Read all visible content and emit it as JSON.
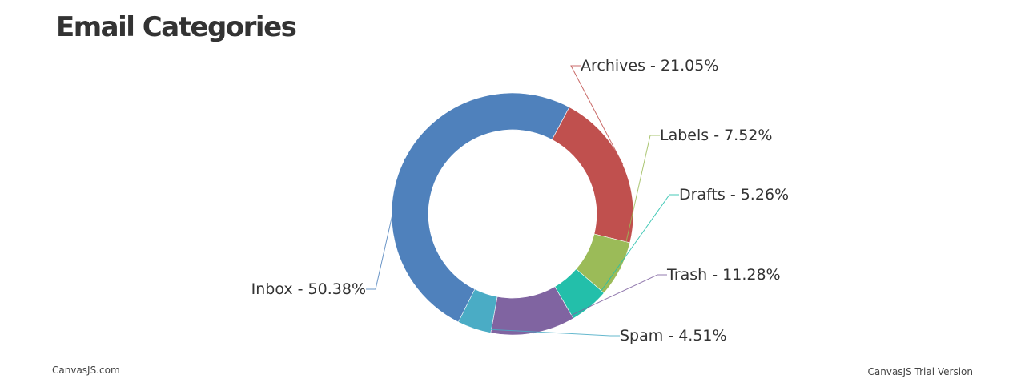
{
  "chart_data": {
    "type": "pie",
    "subtype": "doughnut",
    "title": "Email Categories",
    "label_format": "{label} - {value}%",
    "slices": [
      {
        "label": "Archives",
        "value": 21.05,
        "color": "#C0504E"
      },
      {
        "label": "Labels",
        "value": 7.52,
        "color": "#9BBB58"
      },
      {
        "label": "Drafts",
        "value": 5.26,
        "color": "#23BFAA"
      },
      {
        "label": "Trash",
        "value": 11.28,
        "color": "#8064A1"
      },
      {
        "label": "Spam",
        "value": 4.51,
        "color": "#4AACC5"
      },
      {
        "label": "Inbox",
        "value": 50.38,
        "color": "#4F81BC"
      }
    ],
    "legend": "none"
  },
  "credits": {
    "left": "CanvasJS.com",
    "right": "CanvasJS Trial Version"
  }
}
